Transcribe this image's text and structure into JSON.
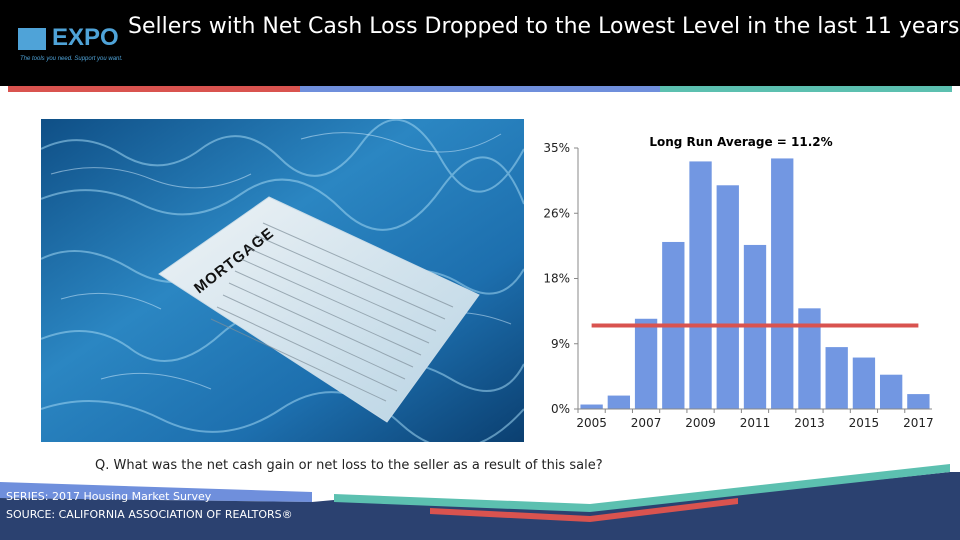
{
  "header": {
    "logo_text": "EXPO",
    "logo_tagline": "The tools you need. Support you want.",
    "title": "Sellers with Net Cash Loss Dropped to the Lowest Level in the last 11 years"
  },
  "colors": {
    "header_bg": "#000000",
    "stripe_red": "#d9534f",
    "stripe_blue": "#6f8fdc",
    "stripe_teal": "#5cc0b0",
    "bar": "#7297e2",
    "average_line": "#d9534f",
    "footer_navy": "#2b4170",
    "logo_blue": "#4fa3d8"
  },
  "photo": {
    "document_label": "MORTGAGE"
  },
  "chart_data": {
    "type": "bar",
    "title": "Long Run Average = 11.2%",
    "categories": [
      "2005",
      "2006",
      "2007",
      "2008",
      "2009",
      "2010",
      "2011",
      "2012",
      "2013",
      "2014",
      "2015",
      "2016",
      "2017"
    ],
    "values": [
      0.6,
      1.8,
      12.1,
      22.4,
      33.2,
      30.0,
      22.0,
      33.6,
      13.5,
      8.3,
      6.9,
      4.6,
      2.0
    ],
    "x_tick_labels": [
      "2005",
      "2007",
      "2009",
      "2011",
      "2013",
      "2015",
      "2017"
    ],
    "y_tick_labels": [
      "0%",
      "9%",
      "18%",
      "26%",
      "35%"
    ],
    "y_tick_values": [
      0,
      8.75,
      17.5,
      26.25,
      35
    ],
    "ylim": [
      0,
      35
    ],
    "average_line": 11.2,
    "grid": false,
    "legend": "none"
  },
  "question": "Q. What was the net cash gain or net loss to the seller as a result of this sale?",
  "footer": {
    "series": "SERIES: 2017 Housing Market Survey",
    "source": "SOURCE:  CALIFORNIA ASSOCIATION OF REALTORS®"
  }
}
